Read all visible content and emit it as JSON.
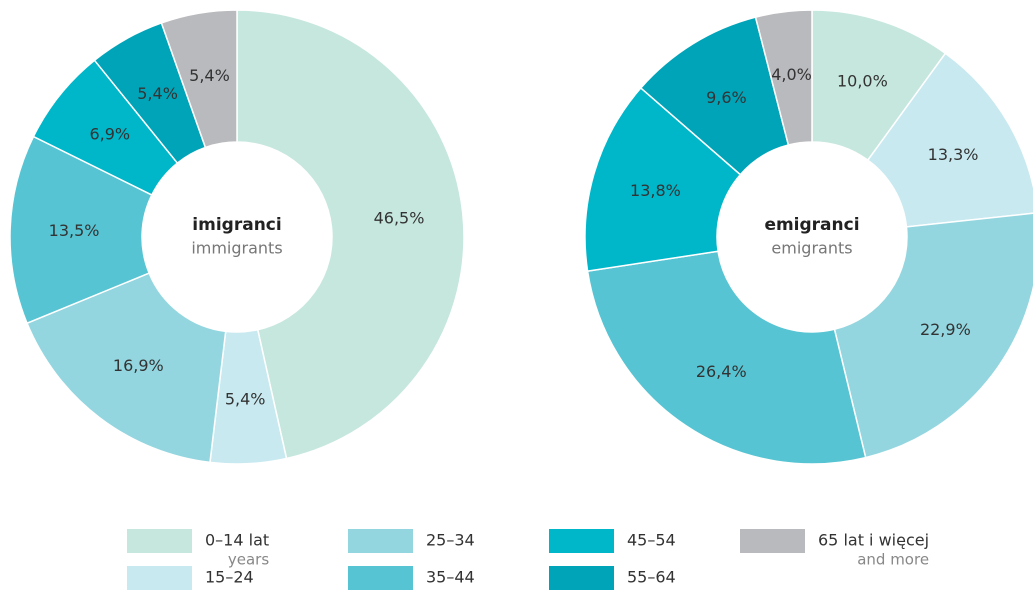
{
  "chart_data": [
    {
      "type": "pie",
      "title": "imigranci",
      "subtitle": "immigrants",
      "categories": [
        "0–14 lat",
        "15–24",
        "25–34",
        "35–44",
        "45–54",
        "55–64",
        "65 lat i więcej"
      ],
      "category_notes": [
        "years",
        null,
        null,
        null,
        null,
        null,
        "and more"
      ],
      "values": [
        46.5,
        5.4,
        16.9,
        13.5,
        6.9,
        5.4,
        5.4
      ],
      "value_labels": [
        "46,5%",
        "5,4%",
        "16,9%",
        "13,5%",
        "6,9%",
        "5,4%",
        "5,4%"
      ],
      "colors": [
        "#c6e7de",
        "#c8e9f0",
        "#93d6df",
        "#56c4d2",
        "#00b6c9",
        "#00a4b9",
        "#b9babe"
      ]
    },
    {
      "type": "pie",
      "title": "emigranci",
      "subtitle": "emigrants",
      "categories": [
        "0–14 lat",
        "15–24",
        "25–34",
        "35–44",
        "45–54",
        "55–64",
        "65 lat i więcej"
      ],
      "category_notes": [
        "years",
        null,
        null,
        null,
        null,
        null,
        "and more"
      ],
      "values": [
        10.0,
        13.3,
        22.9,
        26.4,
        13.8,
        9.6,
        4.0
      ],
      "value_labels": [
        "10,0%",
        "13,3%",
        "22,9%",
        "26,4%",
        "13,8%",
        "9,6%",
        "4,0%"
      ],
      "colors": [
        "#c6e7de",
        "#c8e9f0",
        "#93d6df",
        "#56c4d2",
        "#00b6c9",
        "#00a4b9",
        "#b9babe"
      ]
    }
  ]
}
